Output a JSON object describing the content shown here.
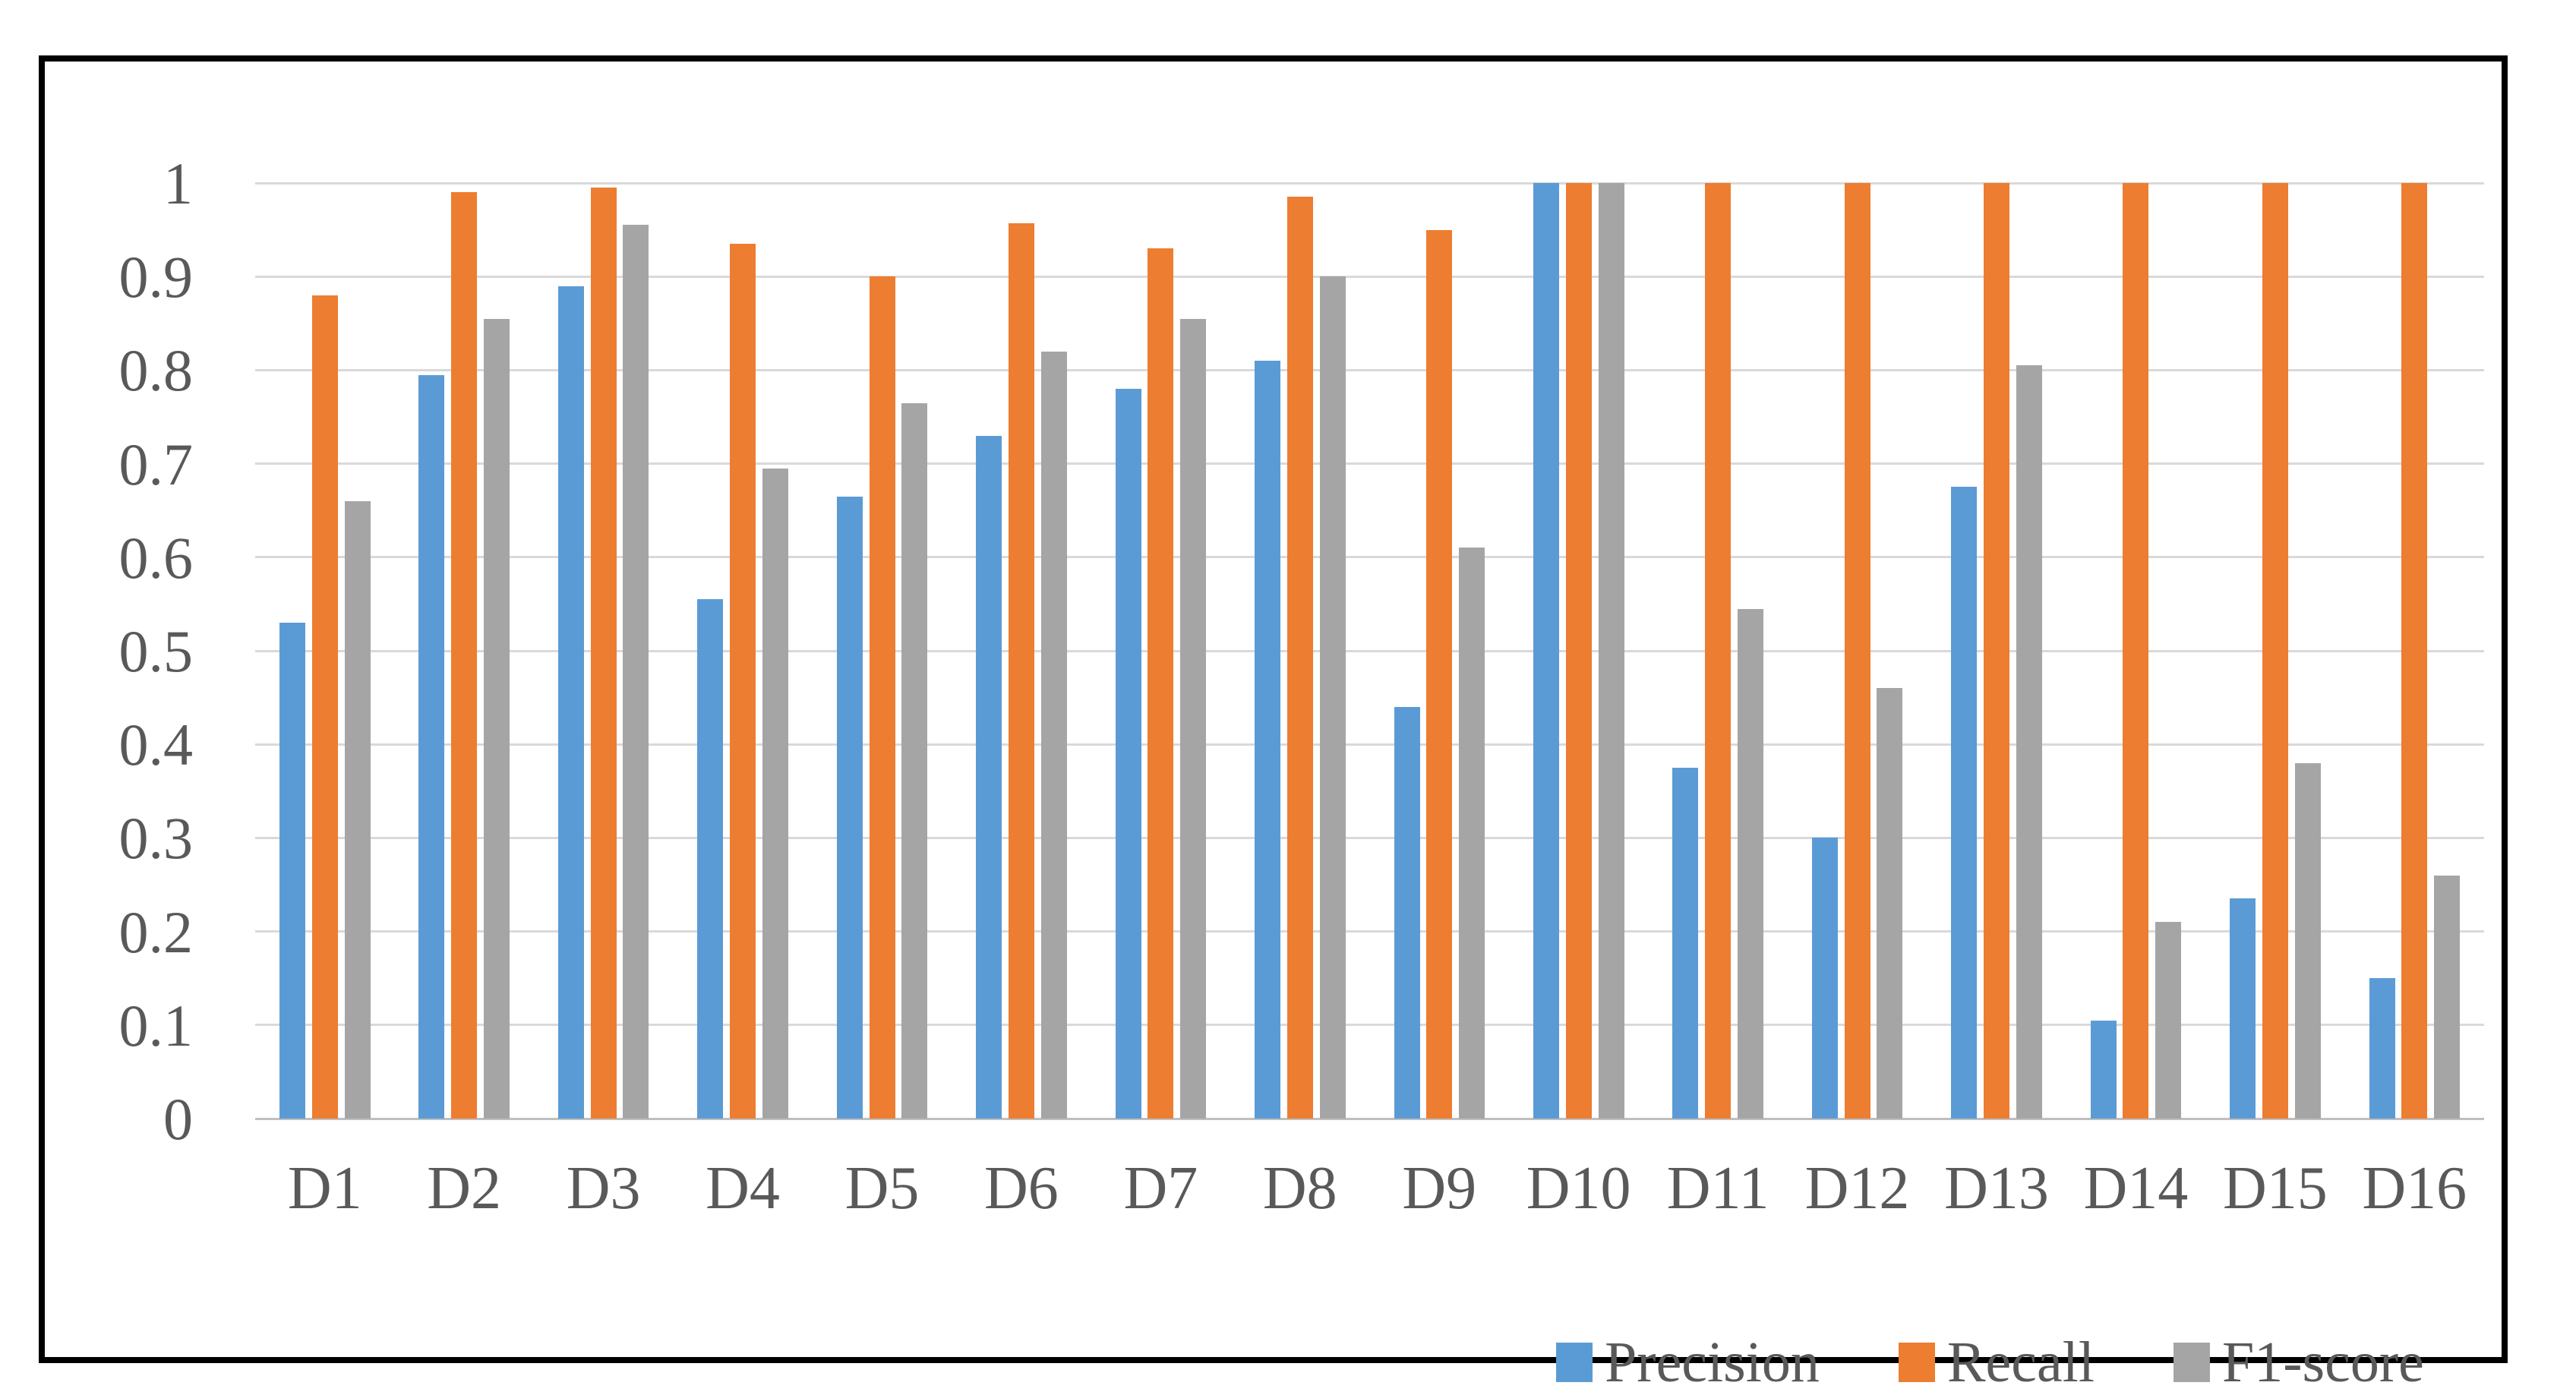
{
  "figure": {
    "background": "#FFFFFF",
    "border_color": "#000000",
    "title": ""
  },
  "chart_data": {
    "type": "bar",
    "title": "",
    "xlabel": "",
    "ylabel": "",
    "categories": [
      "D1",
      "D2",
      "D3",
      "D4",
      "D5",
      "D6",
      "D7",
      "D8",
      "D9",
      "D10",
      "D11",
      "D12",
      "D13",
      "D14",
      "D15",
      "D16"
    ],
    "series": [
      {
        "name": "Precision",
        "color": "#5B9BD5",
        "values": [
          0.53,
          0.795,
          0.89,
          0.555,
          0.665,
          0.73,
          0.78,
          0.81,
          0.44,
          1.0,
          0.375,
          0.3,
          0.675,
          0.105,
          0.235,
          0.15
        ]
      },
      {
        "name": "Recall",
        "color": "#ED7D31",
        "values": [
          0.88,
          0.99,
          0.995,
          0.935,
          0.9,
          0.957,
          0.93,
          0.985,
          0.95,
          1.0,
          1.0,
          1.0,
          1.0,
          1.0,
          1.0,
          1.0
        ]
      },
      {
        "name": "F1-score",
        "color": "#A5A5A5",
        "values": [
          0.66,
          0.855,
          0.955,
          0.695,
          0.765,
          0.82,
          0.855,
          0.9,
          0.61,
          1.0,
          0.545,
          0.46,
          0.805,
          0.21,
          0.38,
          0.26
        ]
      }
    ],
    "ylim": [
      0,
      1
    ],
    "y_tick_labels_top_to_bottom": [
      "1",
      "0.9",
      "0.8",
      "0.7",
      "0.6",
      "0.5",
      "0.4",
      "0.3",
      "0.2",
      "0.1",
      "0"
    ],
    "grid": true,
    "gridline_color": "#D9D9D9",
    "axis_line_color": "#BFBFBF",
    "label_color": "#595959",
    "legend_position": "bottom-right",
    "legend_labels": [
      "Precision",
      "Recall",
      "F1-score"
    ]
  }
}
